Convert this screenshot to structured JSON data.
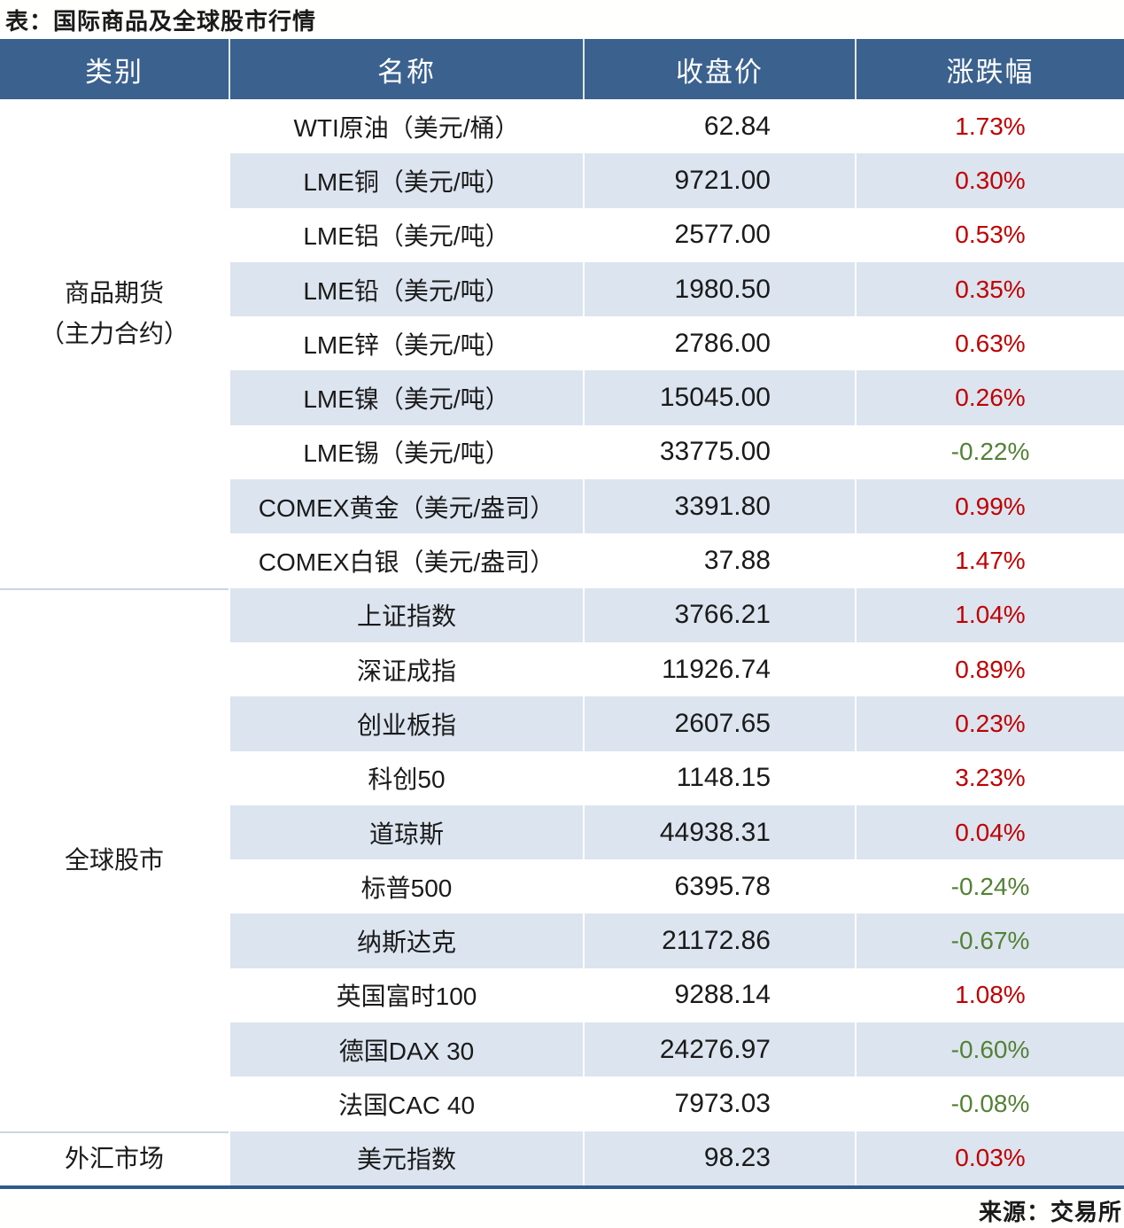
{
  "title": "表：国际商品及全球股市行情",
  "source": "来源：交易所",
  "columns": [
    "类别",
    "名称",
    "收盘价",
    "涨跌幅"
  ],
  "categories": [
    {
      "line1": "商品期货",
      "line2": "（主力合约）"
    },
    {
      "line1": "全球股市",
      "line2": ""
    },
    {
      "line1": "外汇市场",
      "line2": ""
    }
  ],
  "rows": [
    {
      "name": "WTI原油（美元/桶）",
      "close": "62.84",
      "change": "1.73%"
    },
    {
      "name": "LME铜（美元/吨）",
      "close": "9721.00",
      "change": "0.30%"
    },
    {
      "name": "LME铝（美元/吨）",
      "close": "2577.00",
      "change": "0.53%"
    },
    {
      "name": "LME铅（美元/吨）",
      "close": "1980.50",
      "change": "0.35%"
    },
    {
      "name": "LME锌（美元/吨）",
      "close": "2786.00",
      "change": "0.63%"
    },
    {
      "name": "LME镍（美元/吨）",
      "close": "15045.00",
      "change": "0.26%"
    },
    {
      "name": "LME锡（美元/吨）",
      "close": "33775.00",
      "change": "-0.22%"
    },
    {
      "name": "COMEX黄金（美元/盎司）",
      "close": "3391.80",
      "change": "0.99%"
    },
    {
      "name": "COMEX白银（美元/盎司）",
      "close": "37.88",
      "change": "1.47%"
    },
    {
      "name": "上证指数",
      "close": "3766.21",
      "change": "1.04%"
    },
    {
      "name": "深证成指",
      "close": "11926.74",
      "change": "0.89%"
    },
    {
      "name": "创业板指",
      "close": "2607.65",
      "change": "0.23%"
    },
    {
      "name": "科创50",
      "close": "1148.15",
      "change": "3.23%"
    },
    {
      "name": "道琼斯",
      "close": "44938.31",
      "change": "0.04%"
    },
    {
      "name": "标普500",
      "close": "6395.78",
      "change": "-0.24%"
    },
    {
      "name": "纳斯达克",
      "close": "21172.86",
      "change": "-0.67%"
    },
    {
      "name": "英国富时100",
      "close": "9288.14",
      "change": "1.08%"
    },
    {
      "name": "德国DAX 30",
      "close": "24276.97",
      "change": "-0.60%"
    },
    {
      "name": "法国CAC 40",
      "close": "7973.03",
      "change": "-0.08%"
    },
    {
      "name": "美元指数",
      "close": "98.23",
      "change": "0.03%"
    }
  ],
  "colors": {
    "header_bg": "#3B618E",
    "stripe": "#DCE4EF",
    "positive": "#C00000",
    "negative": "#538135",
    "table_border": "#2F5A8C",
    "group_divider": "#C9D5E4"
  },
  "chart_data": {
    "type": "table",
    "title": "表：国际商品及全球股市行情",
    "columns": [
      "类别",
      "名称",
      "收盘价",
      "涨跌幅"
    ],
    "change_unit": "%",
    "groups": [
      {
        "category": "商品期货（主力合约）",
        "rows": [
          [
            "WTI原油（美元/桶）",
            62.84,
            1.73
          ],
          [
            "LME铜（美元/吨）",
            9721.0,
            0.3
          ],
          [
            "LME铝（美元/吨）",
            2577.0,
            0.53
          ],
          [
            "LME铅（美元/吨）",
            1980.5,
            0.35
          ],
          [
            "LME锌（美元/吨）",
            2786.0,
            0.63
          ],
          [
            "LME镍（美元/吨）",
            15045.0,
            0.26
          ],
          [
            "LME锡（美元/吨）",
            33775.0,
            -0.22
          ],
          [
            "COMEX黄金（美元/盎司）",
            3391.8,
            0.99
          ],
          [
            "COMEX白银（美元/盎司）",
            37.88,
            1.47
          ]
        ]
      },
      {
        "category": "全球股市",
        "rows": [
          [
            "上证指数",
            3766.21,
            1.04
          ],
          [
            "深证成指",
            11926.74,
            0.89
          ],
          [
            "创业板指",
            2607.65,
            0.23
          ],
          [
            "科创50",
            1148.15,
            3.23
          ],
          [
            "道琼斯",
            44938.31,
            0.04
          ],
          [
            "标普500",
            6395.78,
            -0.24
          ],
          [
            "纳斯达克",
            21172.86,
            -0.67
          ],
          [
            "英国富时100",
            9288.14,
            1.08
          ],
          [
            "德国DAX 30",
            24276.97,
            -0.6
          ],
          [
            "法国CAC 40",
            7973.03,
            -0.08
          ]
        ]
      },
      {
        "category": "外汇市场",
        "rows": [
          [
            "美元指数",
            98.23,
            0.03
          ]
        ]
      }
    ],
    "source": "交易所",
    "legend_position": "none",
    "grid": false
  }
}
